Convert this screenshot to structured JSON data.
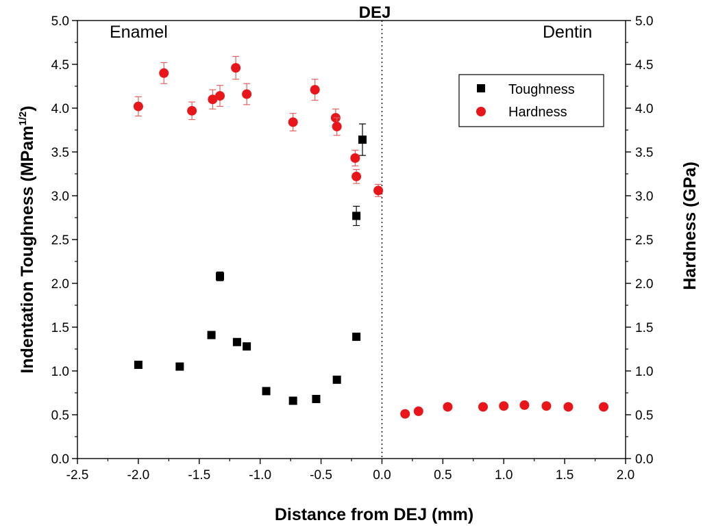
{
  "chart_data": {
    "type": "scatter",
    "xlabel": "Distance from DEJ (mm)",
    "ylabel": "Indentation Toughness (MPam",
    "ylabel_sup": "1/2",
    "ylabel_end": ")",
    "y2label": "Hardness (GPa)",
    "xlim": [
      -2.5,
      2.0
    ],
    "ylim": [
      0.0,
      5.0
    ],
    "y2lim": [
      0.0,
      5.0
    ],
    "xticks": [
      "-2.5",
      "-2.0",
      "-1.5",
      "-1.0",
      "-0.5",
      "0.0",
      "0.5",
      "1.0",
      "1.5",
      "2.0"
    ],
    "yticks": [
      "0.0",
      "0.5",
      "1.0",
      "1.5",
      "2.0",
      "2.5",
      "3.0",
      "3.5",
      "4.0",
      "4.5",
      "5.0"
    ],
    "grid": false,
    "legend_position": "top-right",
    "annotations": {
      "enamel": "Enamel",
      "dentin": "Dentin",
      "dej": "DEJ",
      "dej_x": 0.0
    },
    "series": [
      {
        "name": "Toughness",
        "axis": "left",
        "marker": "square",
        "color": "#000000",
        "points": [
          {
            "x": -2.0,
            "y": 1.07
          },
          {
            "x": -1.66,
            "y": 1.05
          },
          {
            "x": -1.4,
            "y": 1.41,
            "err": 0.03
          },
          {
            "x": -1.33,
            "y": 2.08,
            "err": 0.05
          },
          {
            "x": -1.19,
            "y": 1.33,
            "err": 0.03
          },
          {
            "x": -1.11,
            "y": 1.28,
            "err": 0.03
          },
          {
            "x": -0.95,
            "y": 0.77
          },
          {
            "x": -0.73,
            "y": 0.66
          },
          {
            "x": -0.54,
            "y": 0.68
          },
          {
            "x": -0.37,
            "y": 0.9
          },
          {
            "x": -0.21,
            "y": 1.39
          },
          {
            "x": -0.21,
            "y": 2.77,
            "err": 0.11
          },
          {
            "x": -0.16,
            "y": 3.64,
            "err": 0.18
          }
        ]
      },
      {
        "name": "Hardness",
        "axis": "right",
        "marker": "circle",
        "color": "#e8161a",
        "error_color": "#e06060",
        "points": [
          {
            "x": -2.0,
            "y": 4.02,
            "err": 0.11
          },
          {
            "x": -1.79,
            "y": 4.4,
            "err": 0.12
          },
          {
            "x": -1.56,
            "y": 3.97,
            "err": 0.1
          },
          {
            "x": -1.39,
            "y": 4.1,
            "err": 0.11
          },
          {
            "x": -1.33,
            "y": 4.14,
            "err": 0.12
          },
          {
            "x": -1.2,
            "y": 4.46,
            "err": 0.13
          },
          {
            "x": -1.11,
            "y": 4.16,
            "err": 0.12
          },
          {
            "x": -0.73,
            "y": 3.84,
            "err": 0.1
          },
          {
            "x": -0.55,
            "y": 4.21,
            "err": 0.12
          },
          {
            "x": -0.38,
            "y": 3.89,
            "err": 0.1
          },
          {
            "x": -0.37,
            "y": 3.79,
            "err": 0.1
          },
          {
            "x": -0.22,
            "y": 3.43,
            "err": 0.09
          },
          {
            "x": -0.21,
            "y": 3.22,
            "err": 0.08
          },
          {
            "x": -0.03,
            "y": 3.06,
            "err": 0.07
          },
          {
            "x": 0.19,
            "y": 0.51
          },
          {
            "x": 0.3,
            "y": 0.54
          },
          {
            "x": 0.54,
            "y": 0.59
          },
          {
            "x": 0.83,
            "y": 0.59
          },
          {
            "x": 1.0,
            "y": 0.6
          },
          {
            "x": 1.17,
            "y": 0.61
          },
          {
            "x": 1.35,
            "y": 0.6
          },
          {
            "x": 1.53,
            "y": 0.59
          },
          {
            "x": 1.82,
            "y": 0.59
          }
        ]
      }
    ]
  }
}
